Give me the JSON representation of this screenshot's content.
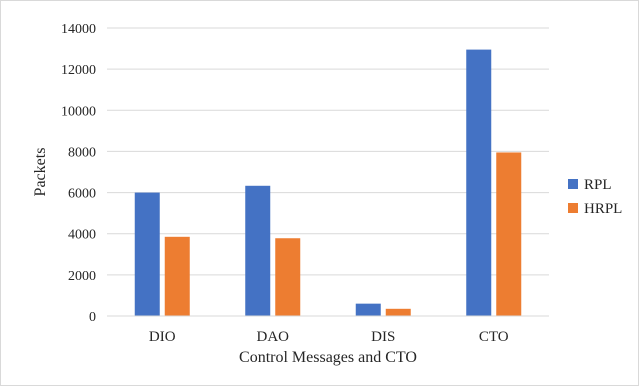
{
  "chart_data": {
    "type": "bar",
    "title": "",
    "xlabel": "Control Messages and CTO",
    "ylabel": "Packets",
    "categories": [
      "DIO",
      "DAO",
      "DIS",
      "CTO"
    ],
    "series": [
      {
        "name": "RPL",
        "color": "#4472c4",
        "values": [
          6000,
          6330,
          600,
          12950
        ]
      },
      {
        "name": "HRPL",
        "color": "#ed7d31",
        "values": [
          3850,
          3780,
          350,
          7950
        ]
      }
    ],
    "ylim": [
      0,
      14000
    ],
    "yticks": [
      0,
      2000,
      4000,
      6000,
      8000,
      10000,
      12000,
      14000
    ],
    "grid": true,
    "legend_position": "right"
  }
}
